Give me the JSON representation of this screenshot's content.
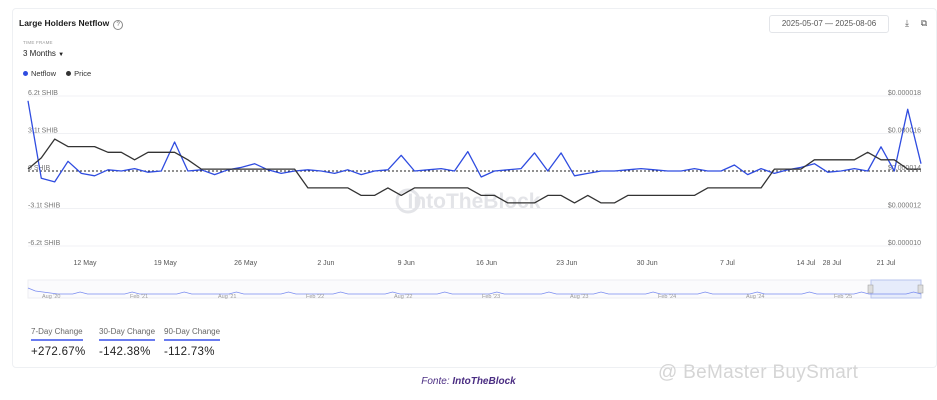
{
  "header": {
    "title": "Large Holders Netflow",
    "help_icon": "question-icon",
    "date_start": "2025-05-07",
    "date_sep": "—",
    "date_end": "2025-08-06",
    "download_icon": "download-icon",
    "link_icon": "link-icon"
  },
  "timeframe": {
    "label": "TIME FRAME",
    "value": "3 Months"
  },
  "legend": [
    {
      "name": "Netflow",
      "color": "#2f4ce0"
    },
    {
      "name": "Price",
      "color": "#333333"
    }
  ],
  "watermark": "IntoTheBlock",
  "chart_data": {
    "type": "line",
    "x_tick_labels": [
      "12 May",
      "19 May",
      "26 May",
      "2 Jun",
      "9 Jun",
      "16 Jun",
      "23 Jun",
      "30 Jun",
      "7 Jul",
      "14 Jul",
      "28 Jul",
      "21 Jul"
    ],
    "y_left_ticks": [
      "6.2t SHIB",
      "3.1t SHIB",
      "0 SHIB",
      "-3.1t SHIB",
      "-6.2t SHIB"
    ],
    "y_right_ticks": [
      "$0.000018",
      "$0.000016",
      "$0.000014",
      "$0.000012",
      "$0.000010"
    ],
    "ylim_left": [
      -6.2,
      6.2
    ],
    "ylim_right": [
      1e-05,
      1.8e-05
    ],
    "series": [
      {
        "name": "Netflow",
        "color": "#2f4ce0",
        "values": [
          5.8,
          -0.6,
          -0.9,
          0.8,
          -0.2,
          -0.4,
          0.1,
          0.0,
          0.2,
          -0.1,
          0.0,
          2.4,
          0.0,
          0.1,
          -0.3,
          0.1,
          0.3,
          0.6,
          0.1,
          -0.2,
          0.0,
          0.1,
          0.0,
          -0.2,
          0.1,
          -0.3,
          0.0,
          0.1,
          1.3,
          0.0,
          0.1,
          0.2,
          0.0,
          1.6,
          -0.5,
          0.0,
          0.1,
          0.2,
          1.5,
          0.0,
          1.5,
          -0.4,
          -0.2,
          0.0,
          0.0,
          0.1,
          0.2,
          0.1,
          0.0,
          0.0,
          0.2,
          0.0,
          0.0,
          0.5,
          -0.3,
          0.2,
          -0.2,
          0.1,
          0.3,
          0.6,
          -0.1,
          0.0,
          0.2,
          0.0,
          2.0,
          0.0,
          5.1,
          0.6
        ]
      },
      {
        "name": "Price",
        "color": "#333333",
        "values": [
          1.41e-05,
          1.47e-05,
          1.57e-05,
          1.53e-05,
          1.53e-05,
          1.53e-05,
          1.5e-05,
          1.5e-05,
          1.46e-05,
          1.5e-05,
          1.5e-05,
          1.5e-05,
          1.46e-05,
          1.41e-05,
          1.41e-05,
          1.41e-05,
          1.41e-05,
          1.41e-05,
          1.41e-05,
          1.41e-05,
          1.41e-05,
          1.31e-05,
          1.31e-05,
          1.31e-05,
          1.31e-05,
          1.27e-05,
          1.27e-05,
          1.31e-05,
          1.27e-05,
          1.31e-05,
          1.31e-05,
          1.31e-05,
          1.31e-05,
          1.31e-05,
          1.27e-05,
          1.27e-05,
          1.23e-05,
          1.23e-05,
          1.23e-05,
          1.27e-05,
          1.27e-05,
          1.23e-05,
          1.27e-05,
          1.23e-05,
          1.23e-05,
          1.27e-05,
          1.27e-05,
          1.27e-05,
          1.27e-05,
          1.27e-05,
          1.27e-05,
          1.31e-05,
          1.31e-05,
          1.31e-05,
          1.31e-05,
          1.31e-05,
          1.41e-05,
          1.41e-05,
          1.41e-05,
          1.46e-05,
          1.46e-05,
          1.46e-05,
          1.46e-05,
          1.5e-05,
          1.46e-05,
          1.46e-05,
          1.41e-05,
          1.41e-05
        ]
      }
    ],
    "navigator_labels": [
      "Aug '20",
      "Feb '21",
      "Aug '21",
      "Feb '22",
      "Aug '22",
      "Feb '23",
      "Aug '23",
      "Feb '24",
      "Aug '24",
      "Feb '25"
    ],
    "zero_line": true,
    "legend_position": "top-left"
  },
  "stats": [
    {
      "label": "7-Day Change",
      "value": "+272.67%"
    },
    {
      "label": "30-Day Change",
      "value": "-142.38%"
    },
    {
      "label": "90-Day Change",
      "value": "-112.73%"
    }
  ],
  "caption": {
    "prefix": "Fonte: ",
    "source": "IntoTheBlock"
  },
  "footer_watermark": "@ BeMaster BuySmart"
}
